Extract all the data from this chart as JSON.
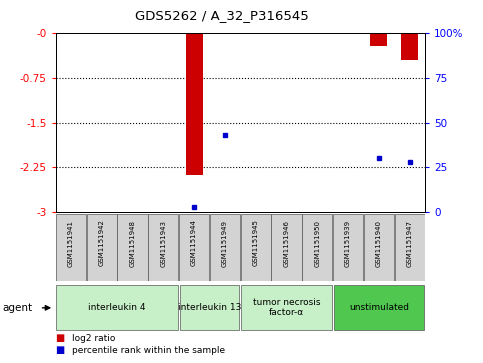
{
  "title": "GDS5262 / A_32_P316545",
  "samples": [
    "GSM1151941",
    "GSM1151942",
    "GSM1151948",
    "GSM1151943",
    "GSM1151944",
    "GSM1151949",
    "GSM1151945",
    "GSM1151946",
    "GSM1151950",
    "GSM1151939",
    "GSM1151940",
    "GSM1151947"
  ],
  "log2_ratio": [
    0,
    0,
    0,
    0,
    -2.38,
    -0.03,
    0,
    0,
    0,
    0,
    -0.22,
    -0.45
  ],
  "percentile_rank": [
    null,
    null,
    null,
    null,
    3,
    43,
    null,
    null,
    null,
    null,
    30,
    28
  ],
  "groups": [
    {
      "label": "interleukin 4",
      "start": 0,
      "end": 3,
      "color": "#c8f0c8"
    },
    {
      "label": "interleukin 13",
      "start": 4,
      "end": 5,
      "color": "#c8f0c8"
    },
    {
      "label": "tumor necrosis\nfactor-α",
      "start": 6,
      "end": 8,
      "color": "#c8f0c8"
    },
    {
      "label": "unstimulated",
      "start": 9,
      "end": 11,
      "color": "#50c850"
    }
  ],
  "ylim_left": [
    -3,
    0
  ],
  "ylim_right": [
    0,
    100
  ],
  "yticks_left": [
    0,
    -0.75,
    -1.5,
    -2.25,
    -3
  ],
  "yticks_right": [
    0,
    25,
    50,
    75,
    100
  ],
  "bar_color": "#cc0000",
  "dot_color": "#0000cc"
}
